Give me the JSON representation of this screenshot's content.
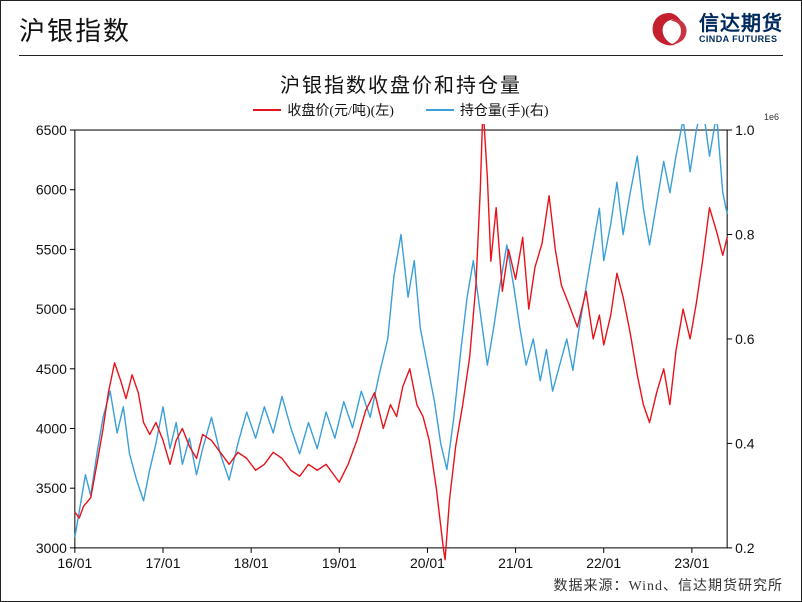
{
  "header": {
    "title": "沪银指数",
    "logo": {
      "zh": "信达期货",
      "en": "CINDA FUTURES",
      "swirl_color": "#c31f2d",
      "text_color": "#002a5c"
    }
  },
  "chart": {
    "type": "line-dual-axis",
    "title": "沪银指数收盘价和持仓量",
    "scale_note": "1e6",
    "background_color": "#ffffff",
    "frame_color": "#000000",
    "line_width": 1.4,
    "legend": [
      {
        "label": "收盘价(元/吨)(左)",
        "color": "#e8121a"
      },
      {
        "label": "持仓量(手)(右)",
        "color": "#3a9fd8"
      }
    ],
    "x": {
      "ticks": [
        "16/01",
        "17/01",
        "18/01",
        "19/01",
        "20/01",
        "21/01",
        "22/01",
        "23/01"
      ],
      "range": [
        0,
        7.4
      ],
      "label_fontsize": 14
    },
    "y_left": {
      "min": 3000,
      "max": 6500,
      "step": 500,
      "ticks": [
        3000,
        3500,
        4000,
        4500,
        5000,
        5500,
        6000,
        6500
      ],
      "label_fontsize": 14
    },
    "y_right": {
      "min": 0.2,
      "max": 1.0,
      "step": 0.2,
      "ticks": [
        0.2,
        0.4,
        0.6,
        0.8,
        1.0
      ],
      "label_fontsize": 14
    },
    "series_close": {
      "color": "#e8121a",
      "axis": "left",
      "data": [
        [
          0.0,
          3300
        ],
        [
          0.05,
          3250
        ],
        [
          0.1,
          3350
        ],
        [
          0.18,
          3420
        ],
        [
          0.25,
          3700
        ],
        [
          0.32,
          4000
        ],
        [
          0.38,
          4300
        ],
        [
          0.45,
          4550
        ],
        [
          0.52,
          4400
        ],
        [
          0.58,
          4250
        ],
        [
          0.65,
          4450
        ],
        [
          0.72,
          4300
        ],
        [
          0.78,
          4050
        ],
        [
          0.85,
          3950
        ],
        [
          0.92,
          4050
        ],
        [
          1.0,
          3900
        ],
        [
          1.08,
          3700
        ],
        [
          1.15,
          3900
        ],
        [
          1.22,
          4000
        ],
        [
          1.3,
          3850
        ],
        [
          1.38,
          3750
        ],
        [
          1.45,
          3950
        ],
        [
          1.55,
          3900
        ],
        [
          1.65,
          3800
        ],
        [
          1.75,
          3700
        ],
        [
          1.85,
          3800
        ],
        [
          1.95,
          3750
        ],
        [
          2.05,
          3650
        ],
        [
          2.15,
          3700
        ],
        [
          2.25,
          3800
        ],
        [
          2.35,
          3750
        ],
        [
          2.45,
          3650
        ],
        [
          2.55,
          3600
        ],
        [
          2.65,
          3700
        ],
        [
          2.75,
          3650
        ],
        [
          2.85,
          3700
        ],
        [
          2.95,
          3600
        ],
        [
          3.0,
          3550
        ],
        [
          3.1,
          3700
        ],
        [
          3.2,
          3900
        ],
        [
          3.3,
          4150
        ],
        [
          3.4,
          4300
        ],
        [
          3.5,
          4000
        ],
        [
          3.58,
          4200
        ],
        [
          3.65,
          4100
        ],
        [
          3.72,
          4350
        ],
        [
          3.8,
          4500
        ],
        [
          3.88,
          4200
        ],
        [
          3.95,
          4100
        ],
        [
          4.02,
          3900
        ],
        [
          4.1,
          3500
        ],
        [
          4.18,
          3000
        ],
        [
          4.2,
          2900
        ],
        [
          4.25,
          3400
        ],
        [
          4.32,
          3850
        ],
        [
          4.4,
          4200
        ],
        [
          4.48,
          4600
        ],
        [
          4.55,
          5200
        ],
        [
          4.6,
          6000
        ],
        [
          4.63,
          6700
        ],
        [
          4.68,
          6100
        ],
        [
          4.72,
          5400
        ],
        [
          4.78,
          5850
        ],
        [
          4.85,
          5150
        ],
        [
          4.92,
          5500
        ],
        [
          5.0,
          5250
        ],
        [
          5.08,
          5600
        ],
        [
          5.15,
          5000
        ],
        [
          5.22,
          5350
        ],
        [
          5.3,
          5550
        ],
        [
          5.38,
          5950
        ],
        [
          5.45,
          5500
        ],
        [
          5.52,
          5200
        ],
        [
          5.6,
          5050
        ],
        [
          5.7,
          4850
        ],
        [
          5.8,
          5150
        ],
        [
          5.88,
          4750
        ],
        [
          5.95,
          4950
        ],
        [
          6.0,
          4700
        ],
        [
          6.08,
          4950
        ],
        [
          6.15,
          5300
        ],
        [
          6.22,
          5100
        ],
        [
          6.3,
          4800
        ],
        [
          6.38,
          4450
        ],
        [
          6.45,
          4200
        ],
        [
          6.52,
          4050
        ],
        [
          6.6,
          4300
        ],
        [
          6.68,
          4500
        ],
        [
          6.75,
          4200
        ],
        [
          6.82,
          4650
        ],
        [
          6.9,
          5000
        ],
        [
          6.98,
          4750
        ],
        [
          7.05,
          5050
        ],
        [
          7.12,
          5400
        ],
        [
          7.2,
          5850
        ],
        [
          7.28,
          5650
        ],
        [
          7.35,
          5450
        ],
        [
          7.4,
          5600
        ]
      ]
    },
    "series_oi": {
      "color": "#3a9fd8",
      "axis": "right",
      "data": [
        [
          0.0,
          0.22
        ],
        [
          0.06,
          0.28
        ],
        [
          0.12,
          0.34
        ],
        [
          0.18,
          0.3
        ],
        [
          0.25,
          0.38
        ],
        [
          0.32,
          0.45
        ],
        [
          0.4,
          0.5
        ],
        [
          0.48,
          0.42
        ],
        [
          0.55,
          0.47
        ],
        [
          0.62,
          0.38
        ],
        [
          0.7,
          0.33
        ],
        [
          0.78,
          0.29
        ],
        [
          0.85,
          0.35
        ],
        [
          0.92,
          0.4
        ],
        [
          1.0,
          0.47
        ],
        [
          1.08,
          0.39
        ],
        [
          1.15,
          0.44
        ],
        [
          1.22,
          0.36
        ],
        [
          1.3,
          0.41
        ],
        [
          1.38,
          0.34
        ],
        [
          1.45,
          0.39
        ],
        [
          1.55,
          0.45
        ],
        [
          1.65,
          0.38
        ],
        [
          1.75,
          0.33
        ],
        [
          1.85,
          0.4
        ],
        [
          1.95,
          0.46
        ],
        [
          2.05,
          0.41
        ],
        [
          2.15,
          0.47
        ],
        [
          2.25,
          0.42
        ],
        [
          2.35,
          0.49
        ],
        [
          2.45,
          0.43
        ],
        [
          2.55,
          0.38
        ],
        [
          2.65,
          0.44
        ],
        [
          2.75,
          0.39
        ],
        [
          2.85,
          0.46
        ],
        [
          2.95,
          0.41
        ],
        [
          3.05,
          0.48
        ],
        [
          3.15,
          0.43
        ],
        [
          3.25,
          0.5
        ],
        [
          3.35,
          0.45
        ],
        [
          3.45,
          0.53
        ],
        [
          3.55,
          0.6
        ],
        [
          3.62,
          0.72
        ],
        [
          3.7,
          0.8
        ],
        [
          3.78,
          0.68
        ],
        [
          3.85,
          0.75
        ],
        [
          3.92,
          0.62
        ],
        [
          4.0,
          0.55
        ],
        [
          4.08,
          0.48
        ],
        [
          4.15,
          0.4
        ],
        [
          4.22,
          0.35
        ],
        [
          4.3,
          0.45
        ],
        [
          4.38,
          0.58
        ],
        [
          4.45,
          0.68
        ],
        [
          4.52,
          0.75
        ],
        [
          4.6,
          0.65
        ],
        [
          4.68,
          0.55
        ],
        [
          4.75,
          0.62
        ],
        [
          4.82,
          0.7
        ],
        [
          4.9,
          0.78
        ],
        [
          4.98,
          0.7
        ],
        [
          5.05,
          0.62
        ],
        [
          5.12,
          0.55
        ],
        [
          5.2,
          0.6
        ],
        [
          5.28,
          0.52
        ],
        [
          5.35,
          0.58
        ],
        [
          5.42,
          0.5
        ],
        [
          5.5,
          0.55
        ],
        [
          5.58,
          0.6
        ],
        [
          5.65,
          0.54
        ],
        [
          5.72,
          0.62
        ],
        [
          5.8,
          0.7
        ],
        [
          5.88,
          0.78
        ],
        [
          5.95,
          0.85
        ],
        [
          6.0,
          0.75
        ],
        [
          6.08,
          0.82
        ],
        [
          6.15,
          0.9
        ],
        [
          6.22,
          0.8
        ],
        [
          6.3,
          0.88
        ],
        [
          6.38,
          0.95
        ],
        [
          6.45,
          0.85
        ],
        [
          6.52,
          0.78
        ],
        [
          6.6,
          0.86
        ],
        [
          6.68,
          0.94
        ],
        [
          6.75,
          0.88
        ],
        [
          6.82,
          0.95
        ],
        [
          6.9,
          1.02
        ],
        [
          6.98,
          0.92
        ],
        [
          7.05,
          1.0
        ],
        [
          7.12,
          1.05
        ],
        [
          7.2,
          0.95
        ],
        [
          7.28,
          1.03
        ],
        [
          7.35,
          0.88
        ],
        [
          7.4,
          0.84
        ]
      ]
    }
  },
  "source": "数据来源：Wind、信达期货研究所"
}
